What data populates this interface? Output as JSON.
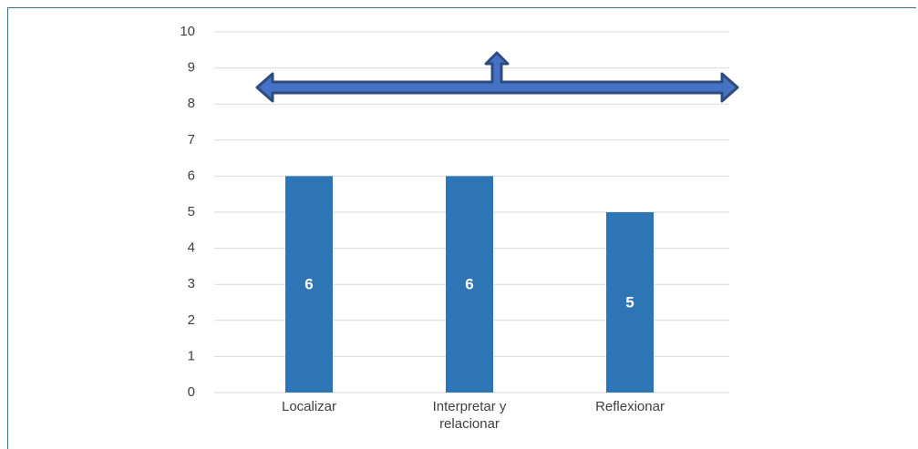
{
  "chart_data": {
    "type": "bar",
    "categories": [
      "Localizar",
      "Interpretar y relacionar",
      "Reflexionar"
    ],
    "values": [
      6,
      6,
      5
    ],
    "color": "#2e75b6",
    "ylim": [
      0,
      10
    ],
    "yticks": [
      0,
      1,
      2,
      3,
      4,
      5,
      6,
      7,
      8,
      9,
      10
    ],
    "grid": true
  }
}
